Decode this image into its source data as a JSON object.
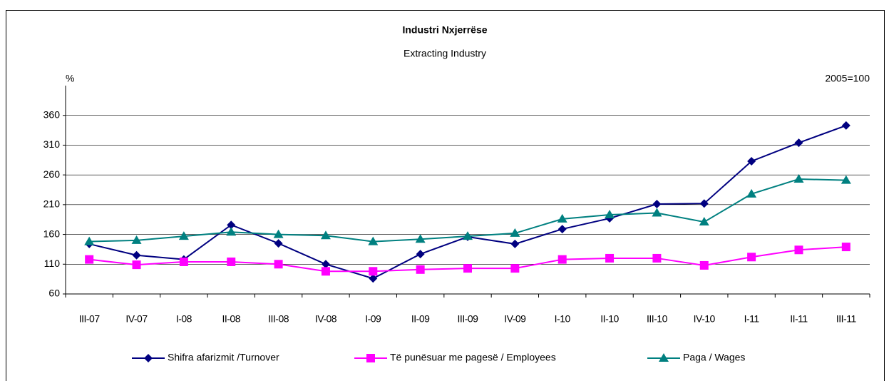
{
  "chart_data": {
    "type": "line",
    "title": "Industri Nxjerrëse",
    "subtitle": "Extracting Industry",
    "y_label": "%",
    "note": "2005=100",
    "categories": [
      "III-07",
      "IV-07",
      "I-08",
      "II-08",
      "III-08",
      "IV-08",
      "I-09",
      "II-09",
      "III-09",
      "IV-09",
      "I-10",
      "II-10",
      "III-10",
      "IV-10",
      "I-11",
      "II-11",
      "III-11"
    ],
    "series": [
      {
        "name": "Shifra afarizmit /Turnover",
        "color": "#000080",
        "marker": "diamond",
        "values": [
          144,
          125,
          118,
          176,
          145,
          110,
          86,
          127,
          156,
          144,
          169,
          187,
          211,
          212,
          283,
          314,
          343
        ]
      },
      {
        "name": "Të punësuar me pagesë / Employees",
        "color": "#ff00ff",
        "marker": "square",
        "values": [
          118,
          109,
          114,
          114,
          110,
          98,
          98,
          101,
          103,
          103,
          118,
          120,
          120,
          108,
          122,
          134,
          139
        ]
      },
      {
        "name": "Paga / Wages",
        "color": "#008080",
        "marker": "triangle",
        "values": [
          148,
          150,
          157,
          164,
          160,
          158,
          148,
          152,
          157,
          162,
          186,
          193,
          196,
          181,
          228,
          253,
          251
        ]
      }
    ],
    "ylim": [
      60,
      410
    ],
    "yticks": [
      60,
      110,
      160,
      210,
      260,
      310,
      360
    ],
    "grid": true,
    "legend": "bottom"
  }
}
